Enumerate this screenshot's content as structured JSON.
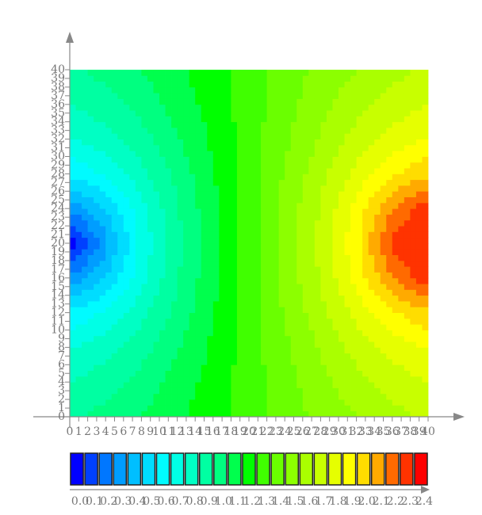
{
  "chart_data": {
    "type": "contour",
    "x": [
      0,
      4,
      8,
      12,
      16,
      20,
      24,
      28,
      32,
      36,
      40
    ],
    "y": [
      0,
      4,
      8,
      12,
      16,
      20,
      24,
      28,
      32,
      36,
      40
    ],
    "z": [
      [
        0.99,
        1.03,
        1.1,
        1.18,
        1.26,
        1.35,
        1.44,
        1.53,
        1.6,
        1.67,
        1.71
      ],
      [
        0.9,
        0.96,
        1.04,
        1.14,
        1.24,
        1.35,
        1.46,
        1.57,
        1.66,
        1.74,
        1.8
      ],
      [
        0.79,
        0.86,
        0.96,
        1.09,
        1.22,
        1.35,
        1.48,
        1.61,
        1.74,
        1.84,
        1.91
      ],
      [
        0.62,
        0.71,
        0.87,
        1.03,
        1.19,
        1.35,
        1.51,
        1.67,
        1.83,
        1.99,
        2.08
      ],
      [
        0.31,
        0.51,
        0.77,
        0.99,
        1.18,
        1.35,
        1.53,
        1.71,
        1.93,
        2.19,
        2.39
      ],
      [
        0.0,
        0.36,
        0.73,
        0.97,
        1.17,
        1.35,
        1.53,
        1.73,
        1.97,
        2.34,
        2.4
      ],
      [
        0.31,
        0.51,
        0.77,
        0.99,
        1.18,
        1.35,
        1.53,
        1.71,
        1.93,
        2.19,
        2.39
      ],
      [
        0.62,
        0.71,
        0.87,
        1.03,
        1.19,
        1.35,
        1.51,
        1.67,
        1.83,
        1.99,
        2.08
      ],
      [
        0.79,
        0.86,
        0.96,
        1.09,
        1.22,
        1.35,
        1.48,
        1.61,
        1.74,
        1.84,
        1.91
      ],
      [
        0.9,
        0.96,
        1.04,
        1.14,
        1.24,
        1.35,
        1.46,
        1.57,
        1.66,
        1.74,
        1.8
      ],
      [
        0.99,
        1.03,
        1.1,
        1.18,
        1.26,
        1.35,
        1.44,
        1.53,
        1.6,
        1.67,
        1.71
      ]
    ],
    "xlim": [
      0,
      40
    ],
    "ylim": [
      0,
      40
    ],
    "xticks": [
      0,
      1,
      2,
      3,
      4,
      5,
      6,
      7,
      8,
      9,
      10,
      11,
      12,
      13,
      14,
      15,
      16,
      17,
      18,
      19,
      20,
      21,
      22,
      23,
      24,
      25,
      26,
      27,
      28,
      29,
      30,
      31,
      32,
      33,
      34,
      35,
      36,
      37,
      38,
      39,
      40
    ],
    "yticks": [
      0,
      1,
      2,
      3,
      4,
      5,
      6,
      7,
      8,
      9,
      10,
      11,
      12,
      13,
      14,
      15,
      16,
      17,
      18,
      19,
      20,
      21,
      22,
      23,
      24,
      25,
      26,
      27,
      28,
      29,
      30,
      31,
      32,
      33,
      34,
      35,
      36,
      37,
      38,
      39,
      40
    ],
    "levels": [
      {
        "value": 0,
        "label": "0.0"
      },
      0.1,
      0.2,
      0.3,
      0.4,
      0.5,
      0.6,
      0.7,
      0.8,
      0.9,
      {
        "value": 1,
        "label": "1.0"
      },
      1.1,
      1.2,
      1.3,
      1.4,
      1.5,
      1.6,
      1.7,
      1.8,
      1.9,
      {
        "value": 2,
        "label": "2.0"
      },
      2.1,
      2.2,
      2.3,
      2.4
    ],
    "colors": [
      "#0000ff",
      "#0040ff",
      "#0077ff",
      "#009dff",
      "#00bfff",
      "#00ddff",
      "#00fbff",
      "#00ffe6",
      "#00ffc4",
      "#00ffa2",
      "#00ff80",
      "#00ff4d",
      "#00ff00",
      "#40ff00",
      "#6aff00",
      "#8cff00",
      "#aaff00",
      "#c8ff00",
      "#e6ff00",
      "#ffff00",
      "#ffdd00",
      "#ffaa00",
      "#ff6a00",
      "#ff3300",
      "#ff0000"
    ]
  }
}
